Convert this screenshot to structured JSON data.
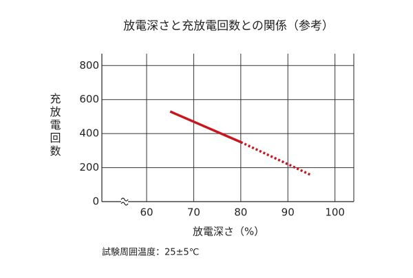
{
  "chart_data": {
    "type": "line",
    "title": "放電深さと充放電回数との関係（参考）",
    "x_label": "放電深さ（%）",
    "y_label": "充放電回数",
    "footnote": "試験周囲温度：25±5℃",
    "series": [
      {
        "color": "#c8161e",
        "dash": "solid",
        "x": [
          65,
          80
        ],
        "values": [
          530,
          350
        ]
      },
      {
        "color": "#c8161e",
        "dash": "dotted",
        "x": [
          80,
          95
        ],
        "values": [
          350,
          155
        ]
      }
    ],
    "xlim": [
      50.5,
      104
    ],
    "xticks": [
      60,
      70,
      80,
      90,
      100
    ],
    "ylim": [
      0,
      870
    ],
    "yticks": [
      0,
      200,
      400,
      600,
      800
    ],
    "grid": true,
    "x_axis_break": true
  }
}
